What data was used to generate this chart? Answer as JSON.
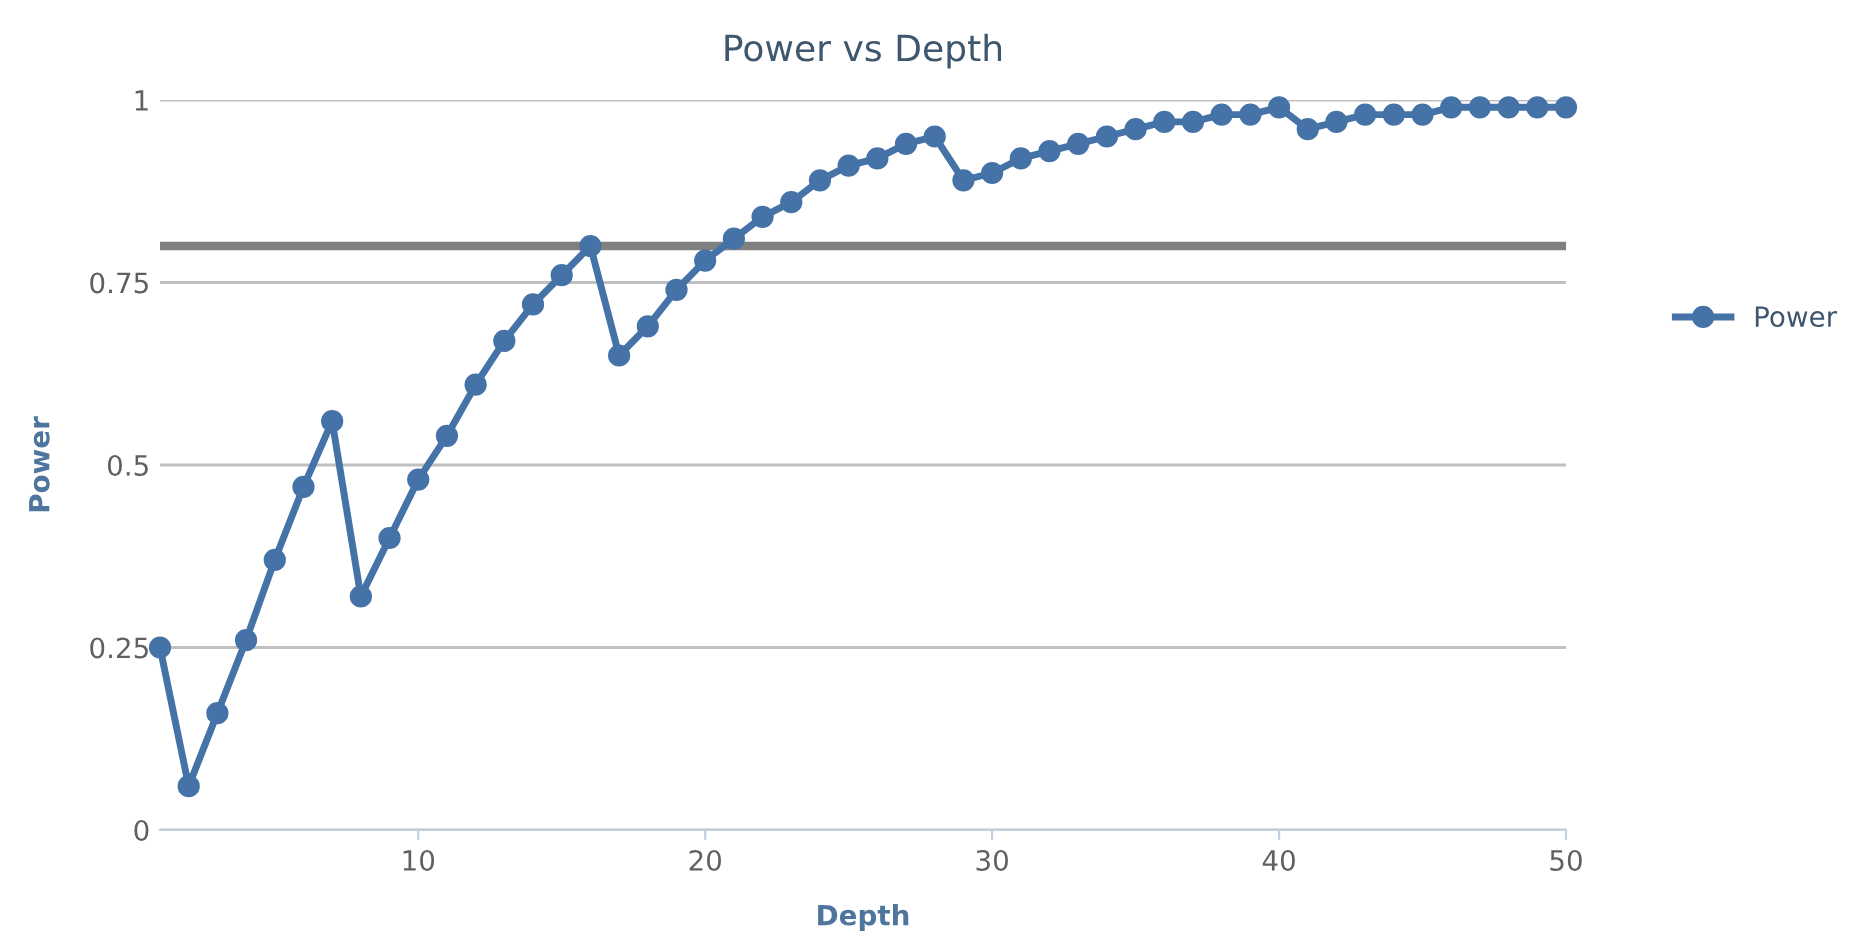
{
  "chart_data": {
    "type": "line",
    "title": "Power vs Depth",
    "xlabel": "Depth",
    "ylabel": "Power",
    "x": [
      1,
      2,
      3,
      4,
      5,
      6,
      7,
      8,
      9,
      10,
      11,
      12,
      13,
      14,
      15,
      16,
      17,
      18,
      19,
      20,
      21,
      22,
      23,
      24,
      25,
      26,
      27,
      28,
      29,
      30,
      31,
      32,
      33,
      34,
      35,
      36,
      37,
      38,
      39,
      40,
      41,
      42,
      43,
      44,
      45,
      46,
      47,
      48,
      49,
      50
    ],
    "series": [
      {
        "name": "Power",
        "color": "#4572a7",
        "values": [
          0.25,
          0.06,
          0.16,
          0.26,
          0.37,
          0.47,
          0.56,
          0.32,
          0.4,
          0.48,
          0.54,
          0.61,
          0.67,
          0.72,
          0.76,
          0.8,
          0.65,
          0.69,
          0.74,
          0.78,
          0.81,
          0.84,
          0.86,
          0.89,
          0.91,
          0.92,
          0.94,
          0.95,
          0.89,
          0.9,
          0.92,
          0.93,
          0.94,
          0.95,
          0.96,
          0.97,
          0.97,
          0.98,
          0.98,
          0.99,
          0.96,
          0.97,
          0.98,
          0.98,
          0.98,
          0.99,
          0.99,
          0.99,
          0.99,
          0.99
        ]
      }
    ],
    "xlim": [
      1,
      50
    ],
    "xticks": [
      10,
      20,
      30,
      40,
      50
    ],
    "ylim": [
      0,
      1
    ],
    "yticks": [
      0,
      0.25,
      0.5,
      0.75,
      1
    ],
    "ref_lines": [
      {
        "axis": "y",
        "value": 0.8,
        "color": "#808080"
      }
    ],
    "grid": "y",
    "legend": "right",
    "marker": "circle",
    "line_style": "solid"
  }
}
